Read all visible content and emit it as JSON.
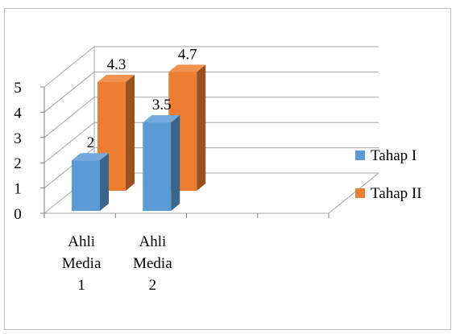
{
  "chart_data": {
    "type": "bar",
    "style": "3d-clustered-column",
    "categories": [
      [
        "Ahli",
        "Media",
        "1"
      ],
      [
        "Ahli",
        "Media",
        "2"
      ]
    ],
    "series": [
      {
        "name": "Tahap I",
        "values": [
          2,
          3.5
        ],
        "color": "#5b9bd5",
        "labels": [
          "2",
          "3.5"
        ]
      },
      {
        "name": "Tahap II",
        "values": [
          4.3,
          4.7
        ],
        "color": "#ed7d31",
        "labels": [
          "4.3",
          "4.7"
        ]
      }
    ],
    "ylim": [
      0,
      5
    ],
    "yticks": [
      "0",
      "1",
      "2",
      "3",
      "4",
      "5"
    ],
    "grid": true,
    "legend_position": "right"
  }
}
